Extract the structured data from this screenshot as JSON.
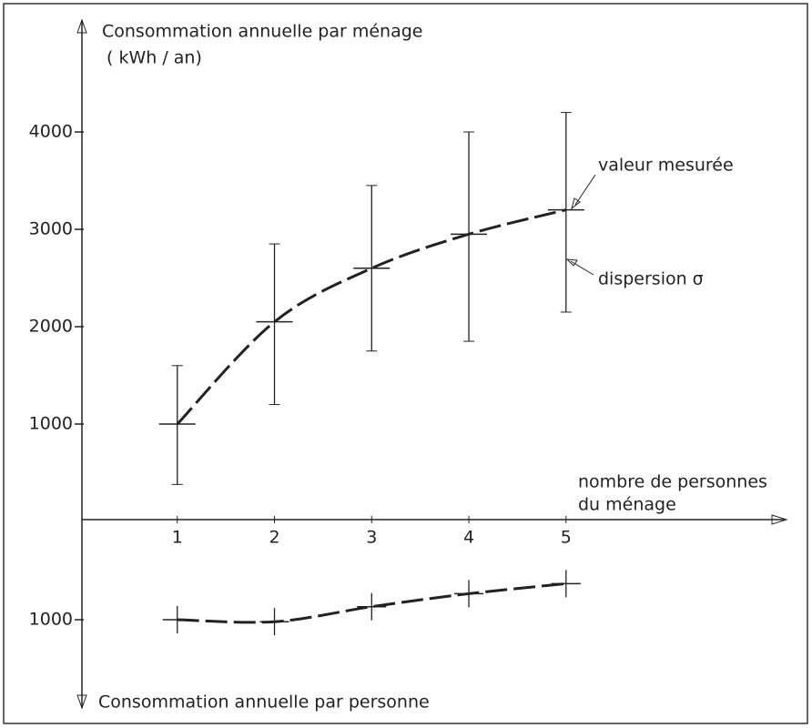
{
  "chart_data": [
    {
      "type": "errorbar",
      "ylabel": "Consommation annuelle par ménage",
      "yunit": "( kWh / an)",
      "xlabel": [
        "nombre de personnes",
        "du ménage"
      ],
      "annotations": [
        "valeur mesurée",
        "dispersion σ"
      ],
      "x": [
        1,
        2,
        3,
        4,
        5
      ],
      "values": [
        1000,
        2050,
        2600,
        2950,
        3200
      ],
      "high": [
        1600,
        2850,
        3450,
        4000,
        4200
      ],
      "low": [
        380,
        1200,
        1750,
        1850,
        2150
      ],
      "xlim": [
        0,
        7.25
      ],
      "xticks": [
        1,
        2,
        3,
        4,
        5
      ],
      "ylim": [
        0,
        5000
      ],
      "yticks": [
        1000,
        2000,
        3000,
        4000
      ],
      "color": "#222222"
    },
    {
      "type": "line",
      "ylabel": "Consommation annuelle par personne",
      "x": [
        1,
        2,
        3,
        4,
        5
      ],
      "values": [
        1000,
        1020,
        870,
        740,
        640
      ],
      "xlim": [
        0,
        7.25
      ],
      "ylim": [
        0,
        1800
      ],
      "yticks": [
        1000
      ],
      "inverted": true,
      "color": "#222222"
    }
  ]
}
